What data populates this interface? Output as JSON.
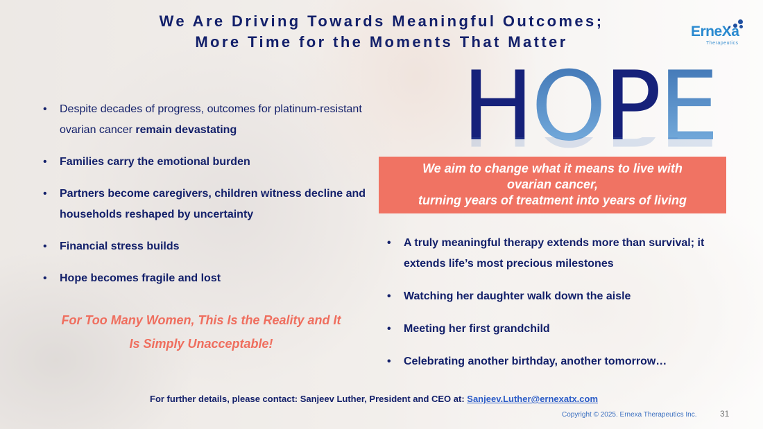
{
  "title": {
    "line1": "We Are Driving Towards Meaningful Outcomes;",
    "line2": "More Time for the Moments That Matter"
  },
  "logo": {
    "name": "ErneXa",
    "sub": "Therapeutics"
  },
  "hope": {
    "h": "H",
    "o": "O",
    "p": "P",
    "e": "E",
    "text": "HOPE",
    "dark_color": "#16217a",
    "light_color": "#6aa6dc"
  },
  "banner": {
    "line1": "We aim to change what it means to live with",
    "line2": "ovarian cancer,",
    "line3": "turning years of treatment into years of living",
    "color": "#f07363"
  },
  "left_bullets": [
    {
      "pre": "Despite decades of progress, outcomes for platinum-resistant ovarian cancer ",
      "bold": "remain devastating"
    },
    {
      "bold": "Families carry the emotional burden"
    },
    {
      "bold": "Partners become caregivers, children witness decline and households reshaped by uncertainty"
    },
    {
      "bold": "Financial stress builds"
    },
    {
      "bold": "Hope becomes fragile and lost"
    }
  ],
  "callout": {
    "line1": "For Too Many Women, This Is the Reality and It",
    "line2": "Is Simply Unacceptable!"
  },
  "right_bullets": [
    "A truly meaningful therapy extends more than survival; it extends life’s most precious milestones",
    "Watching her daughter walk down the aisle",
    "Meeting her first grandchild",
    "Celebrating another birthday, another tomorrow…"
  ],
  "footer": {
    "contact": "For further details, please contact: Sanjeev Luther, President and CEO at: ",
    "email": "Sanjeev.Luther@ernexatx.com",
    "copyright": "Copyright © 2025. Ernexa Therapeutics Inc.",
    "page": "31"
  }
}
